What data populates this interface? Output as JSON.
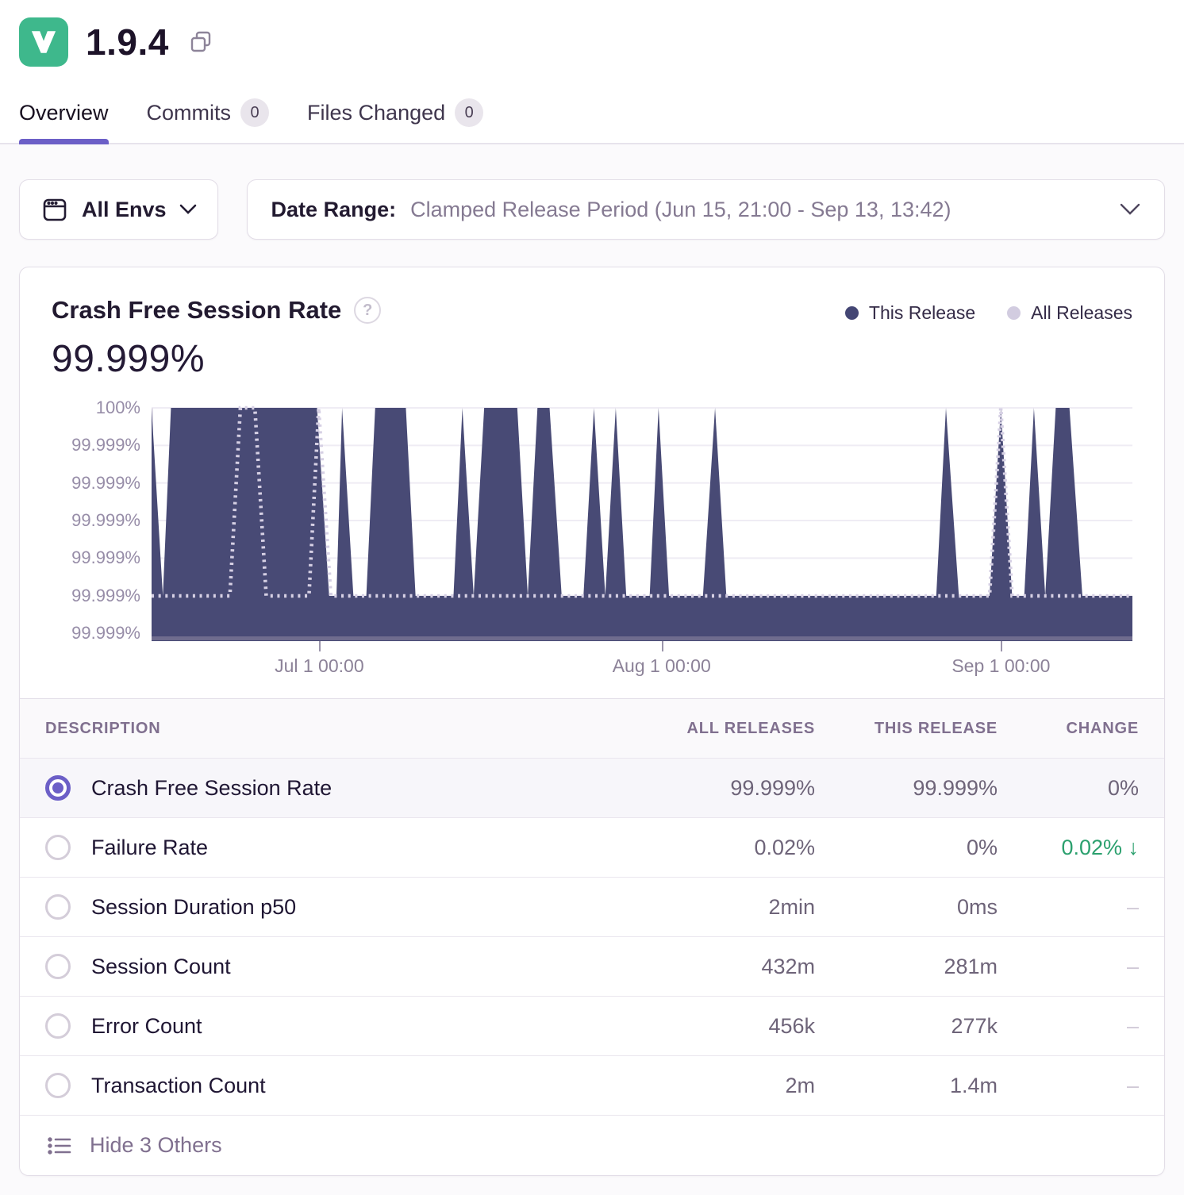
{
  "colors": {
    "accent": "#6C5FC7",
    "green": "#2BA06E",
    "release_icon_bg": "#3EB88C",
    "area_fill": "#484A75",
    "dotted_line": "#D6D0E4",
    "grid_line": "#EFECF4",
    "axis_line": "#8F89A3"
  },
  "header": {
    "version": "1.9.4",
    "icon": "release-v-icon",
    "copy_icon": "copy-icon"
  },
  "tabs": [
    {
      "label": "Overview",
      "active": true
    },
    {
      "label": "Commits",
      "badge": "0",
      "active": false
    },
    {
      "label": "Files Changed",
      "badge": "0",
      "active": false
    }
  ],
  "filters": {
    "envs_label": "All Envs",
    "date_range_label": "Date Range:",
    "date_range_value": "Clamped Release Period (Jun 15, 21:00 - Sep 13, 13:42)"
  },
  "chart_data": {
    "type": "area",
    "title": "Crash Free Session Rate",
    "summary_value": "99.999%",
    "legend": [
      {
        "label": "This Release",
        "color": "#444674"
      },
      {
        "label": "All Releases",
        "color": "#D2CCE0"
      }
    ],
    "y_ticks": [
      "100%",
      "99.999%",
      "99.999%",
      "99.999%",
      "99.999%",
      "99.999%",
      "99.999%"
    ],
    "x_ticks": [
      {
        "label": "Jul 1 00:00",
        "pos": 17.1
      },
      {
        "label": "Aug 1 00:00",
        "pos": 52.0
      },
      {
        "label": "Sep 1 00:00",
        "pos": 86.6
      }
    ],
    "x_range": "Jun 15 21:00 - Sep 13 13:42",
    "units_note": "points are [x: 0-1215 across time axis, v: percent of plot height; v=98 is 100%, v=19 is the 99.999% baseline]",
    "series": [
      {
        "name": "This Release",
        "style": "filled-area",
        "points": [
          [
            0,
            98
          ],
          [
            14,
            19
          ],
          [
            24,
            98
          ],
          [
            205,
            98
          ],
          [
            220,
            19
          ],
          [
            229,
            19
          ],
          [
            236,
            98
          ],
          [
            250,
            19
          ],
          [
            266,
            19
          ],
          [
            277,
            98
          ],
          [
            315,
            98
          ],
          [
            327,
            19
          ],
          [
            374,
            19
          ],
          [
            385,
            98
          ],
          [
            399,
            19
          ],
          [
            412,
            98
          ],
          [
            453,
            98
          ],
          [
            466,
            19
          ],
          [
            478,
            98
          ],
          [
            493,
            98
          ],
          [
            508,
            19
          ],
          [
            535,
            19
          ],
          [
            548,
            98
          ],
          [
            562,
            19
          ],
          [
            575,
            98
          ],
          [
            588,
            19
          ],
          [
            617,
            19
          ],
          [
            628,
            98
          ],
          [
            641,
            19
          ],
          [
            683,
            19
          ],
          [
            698,
            98
          ],
          [
            712,
            19
          ],
          [
            972,
            19
          ],
          [
            984,
            98
          ],
          [
            1000,
            19
          ],
          [
            1038,
            19
          ],
          [
            1052,
            98
          ],
          [
            1066,
            19
          ],
          [
            1081,
            19
          ],
          [
            1093,
            98
          ],
          [
            1107,
            19
          ],
          [
            1120,
            98
          ],
          [
            1137,
            98
          ],
          [
            1153,
            19
          ],
          [
            1215,
            19
          ]
        ]
      },
      {
        "name": "All Releases",
        "style": "dotted-line",
        "points": [
          [
            0,
            19
          ],
          [
            97,
            19
          ],
          [
            110,
            98
          ],
          [
            128,
            98
          ],
          [
            142,
            19
          ],
          [
            195,
            19
          ],
          [
            207,
            98
          ],
          [
            222,
            19
          ],
          [
            1038,
            19
          ],
          [
            1052,
            98
          ],
          [
            1066,
            19
          ],
          [
            1215,
            19
          ]
        ]
      }
    ]
  },
  "table": {
    "columns": [
      "DESCRIPTION",
      "ALL RELEASES",
      "THIS RELEASE",
      "CHANGE"
    ],
    "rows": [
      {
        "label": "Crash Free Session Rate",
        "all": "99.999%",
        "this": "99.999%",
        "change": "0%",
        "selected": true,
        "change_style": "plain"
      },
      {
        "label": "Failure Rate",
        "all": "0.02%",
        "this": "0%",
        "change": "0.02%",
        "selected": false,
        "change_style": "green-down"
      },
      {
        "label": "Session Duration p50",
        "all": "2min",
        "this": "0ms",
        "change": "–",
        "selected": false,
        "change_style": "dash"
      },
      {
        "label": "Session Count",
        "all": "432m",
        "this": "281m",
        "change": "–",
        "selected": false,
        "change_style": "dash"
      },
      {
        "label": "Error Count",
        "all": "456k",
        "this": "277k",
        "change": "–",
        "selected": false,
        "change_style": "dash"
      },
      {
        "label": "Transaction Count",
        "all": "2m",
        "this": "1.4m",
        "change": "–",
        "selected": false,
        "change_style": "dash"
      }
    ],
    "footer_label": "Hide 3 Others"
  }
}
